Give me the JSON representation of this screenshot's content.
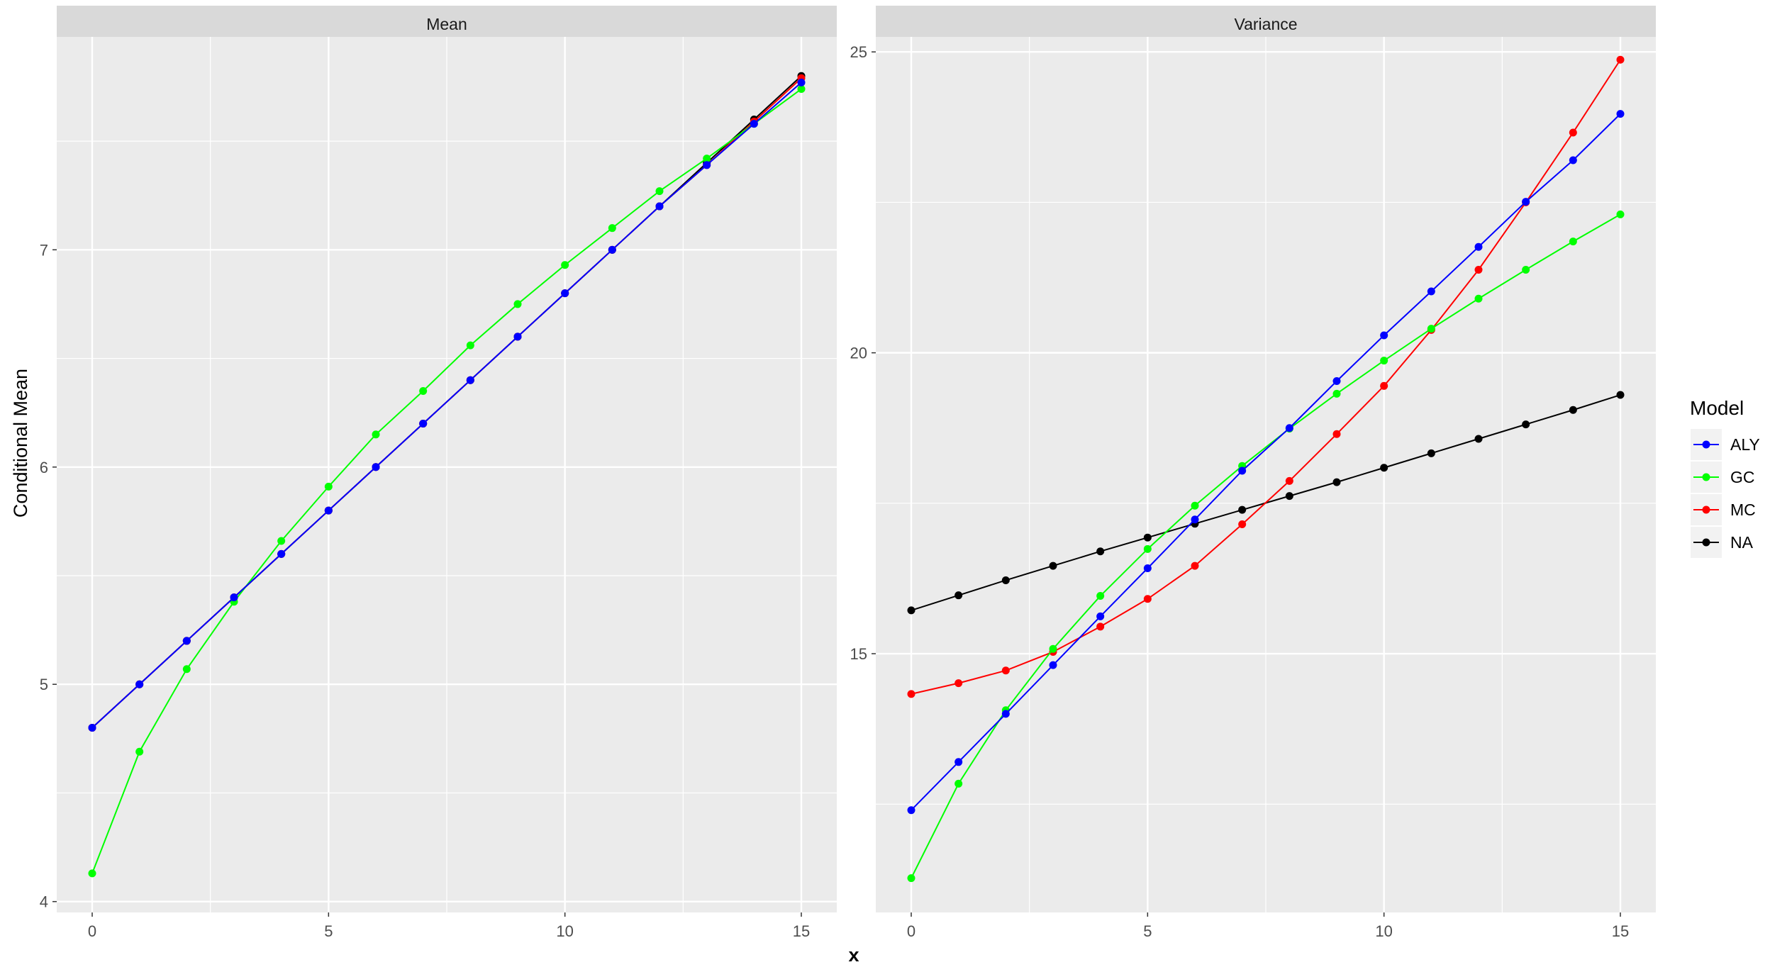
{
  "chart_data": {
    "type": "line",
    "xlabel": "x",
    "ylabel": "Conditional Mean",
    "legend": {
      "title": "Model",
      "placement": "right",
      "entries": [
        "ALY",
        "GC",
        "MC",
        "NA"
      ]
    },
    "colors": {
      "ALY": "#0000ff",
      "GC": "#00ff00",
      "MC": "#ff0000",
      "NA": "#000000"
    },
    "grid": true,
    "panels": [
      {
        "title": "Mean",
        "xlim": [
          -0.75,
          15.75
        ],
        "ylim": [
          3.95,
          7.98
        ],
        "xticks": [
          0,
          5,
          10,
          15
        ],
        "xtick_labels": [
          "0",
          "5",
          "10",
          "15"
        ],
        "yticks": [
          4,
          5,
          6,
          7
        ],
        "ytick_labels": [
          "4",
          "5",
          "6",
          "7"
        ],
        "x": [
          0,
          1,
          2,
          3,
          4,
          5,
          6,
          7,
          8,
          9,
          10,
          11,
          12,
          13,
          14,
          15
        ],
        "series": [
          {
            "name": "NA",
            "values": [
              4.8,
              5.0,
              5.2,
              5.4,
              5.6,
              5.8,
              6.0,
              6.2,
              6.4,
              6.6,
              6.8,
              7.0,
              7.2,
              7.4,
              7.6,
              7.8
            ]
          },
          {
            "name": "MC",
            "values": [
              4.8,
              5.0,
              5.2,
              5.4,
              5.6,
              5.8,
              6.0,
              6.2,
              6.4,
              6.6,
              6.8,
              7.0,
              7.2,
              7.39,
              7.59,
              7.79
            ]
          },
          {
            "name": "GC",
            "values": [
              4.13,
              4.69,
              5.07,
              5.38,
              5.66,
              5.91,
              6.15,
              6.35,
              6.56,
              6.75,
              6.93,
              7.1,
              7.27,
              7.42,
              7.58,
              7.74
            ]
          },
          {
            "name": "ALY",
            "values": [
              4.8,
              5.0,
              5.2,
              5.4,
              5.6,
              5.8,
              6.0,
              6.2,
              6.4,
              6.6,
              6.8,
              7.0,
              7.2,
              7.39,
              7.58,
              7.77
            ]
          }
        ]
      },
      {
        "title": "Variance",
        "xlim": [
          -0.75,
          15.75
        ],
        "ylim": [
          10.7,
          25.25
        ],
        "xticks": [
          0,
          5,
          10,
          15
        ],
        "xtick_labels": [
          "0",
          "5",
          "10",
          "15"
        ],
        "yticks": [
          15,
          20,
          25
        ],
        "ytick_labels": [
          "15",
          "20",
          "25"
        ],
        "x": [
          0,
          1,
          2,
          3,
          4,
          5,
          6,
          7,
          8,
          9,
          10,
          11,
          12,
          13,
          14,
          15
        ],
        "series": [
          {
            "name": "NA",
            "values": [
              15.72,
              15.97,
              16.22,
              16.46,
              16.7,
              16.93,
              17.16,
              17.39,
              17.62,
              17.85,
              18.09,
              18.33,
              18.57,
              18.81,
              19.05,
              19.3
            ]
          },
          {
            "name": "MC",
            "values": [
              14.33,
              14.51,
              14.72,
              15.03,
              15.45,
              15.91,
              16.46,
              17.15,
              17.87,
              18.65,
              19.45,
              20.38,
              21.38,
              22.5,
              23.66,
              24.87
            ]
          },
          {
            "name": "GC",
            "values": [
              11.27,
              12.84,
              14.06,
              15.08,
              15.96,
              16.74,
              17.46,
              18.12,
              18.74,
              19.32,
              19.87,
              20.4,
              20.9,
              21.38,
              21.85,
              22.3
            ]
          },
          {
            "name": "ALY",
            "values": [
              12.4,
              13.2,
              14.0,
              14.81,
              15.62,
              16.42,
              17.23,
              18.04,
              18.75,
              19.53,
              20.29,
              21.02,
              21.76,
              22.51,
              23.2,
              23.97
            ]
          }
        ]
      }
    ]
  }
}
